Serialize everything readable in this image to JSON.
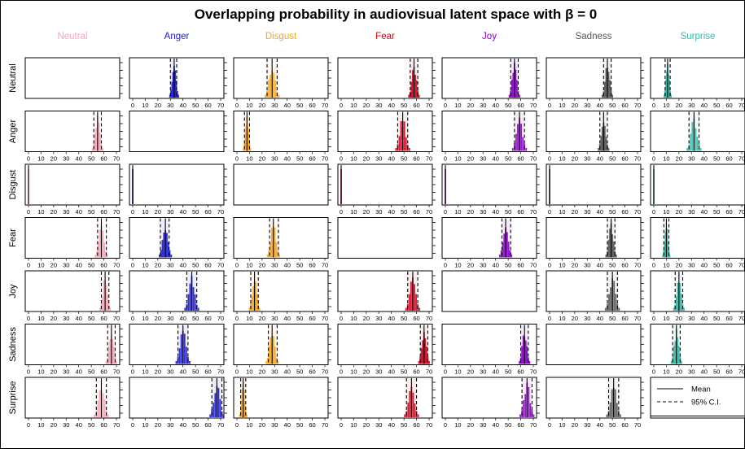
{
  "chart_data": {
    "type": "bar",
    "title": "Overlapping probability in audiovisual latent space with β = 0",
    "columns": [
      "Neutral",
      "Anger",
      "Disgust",
      "Fear",
      "Joy",
      "Sadness",
      "Surprise"
    ],
    "rows": [
      "Neutral",
      "Anger",
      "Disgust",
      "Fear",
      "Joy",
      "Sadness",
      "Surprise"
    ],
    "column_colors": {
      "Neutral": "#f4a8b8",
      "Anger": "#1a1acc",
      "Disgust": "#f5a623",
      "Fear": "#d0021b",
      "Joy": "#8b00c9",
      "Sadness": "#555555",
      "Surprise": "#3ab7a8"
    },
    "xlim": [
      0,
      70
    ],
    "x_ticks": [
      0,
      10,
      20,
      30,
      40,
      50,
      60,
      70
    ],
    "cells": [
      {
        "row": "Neutral",
        "col": "Anger",
        "mean": 33,
        "ci": [
          30,
          35
        ]
      },
      {
        "row": "Neutral",
        "col": "Disgust",
        "mean": 28,
        "ci": [
          24,
          32
        ]
      },
      {
        "row": "Neutral",
        "col": "Fear",
        "mean": 58,
        "ci": [
          55,
          61
        ]
      },
      {
        "row": "Neutral",
        "col": "Joy",
        "mean": 55,
        "ci": [
          52,
          58
        ]
      },
      {
        "row": "Neutral",
        "col": "Sadness",
        "mean": 46,
        "ci": [
          43,
          49
        ]
      },
      {
        "row": "Neutral",
        "col": "Surprise",
        "mean": 11,
        "ci": [
          9,
          13
        ]
      },
      {
        "row": "Anger",
        "col": "Neutral",
        "mean": 55,
        "ci": [
          52,
          58
        ]
      },
      {
        "row": "Anger",
        "col": "Disgust",
        "mean": 8,
        "ci": [
          6,
          10
        ]
      },
      {
        "row": "Anger",
        "col": "Fear",
        "mean": 49,
        "ci": [
          45,
          53
        ]
      },
      {
        "row": "Anger",
        "col": "Joy",
        "mean": 59,
        "ci": [
          55,
          63
        ]
      },
      {
        "row": "Anger",
        "col": "Sadness",
        "mean": 43,
        "ci": [
          40,
          46
        ]
      },
      {
        "row": "Anger",
        "col": "Surprise",
        "mean": 32,
        "ci": [
          28,
          36
        ]
      },
      {
        "row": "Disgust",
        "col": "Neutral",
        "mean": 0,
        "ci": [
          0,
          0
        ]
      },
      {
        "row": "Disgust",
        "col": "Anger",
        "mean": 0,
        "ci": [
          0,
          0
        ]
      },
      {
        "row": "Disgust",
        "col": "Fear",
        "mean": 0,
        "ci": [
          0,
          0
        ]
      },
      {
        "row": "Disgust",
        "col": "Joy",
        "mean": 0,
        "ci": [
          0,
          0
        ]
      },
      {
        "row": "Disgust",
        "col": "Sadness",
        "mean": 0,
        "ci": [
          0,
          0
        ]
      },
      {
        "row": "Disgust",
        "col": "Surprise",
        "mean": 0,
        "ci": [
          0,
          0
        ]
      },
      {
        "row": "Fear",
        "col": "Neutral",
        "mean": 58,
        "ci": [
          55,
          62
        ]
      },
      {
        "row": "Fear",
        "col": "Anger",
        "mean": 26,
        "ci": [
          22,
          29
        ]
      },
      {
        "row": "Fear",
        "col": "Disgust",
        "mean": 29,
        "ci": [
          26,
          33
        ]
      },
      {
        "row": "Fear",
        "col": "Joy",
        "mean": 48,
        "ci": [
          45,
          52
        ]
      },
      {
        "row": "Fear",
        "col": "Sadness",
        "mean": 49,
        "ci": [
          46,
          52
        ]
      },
      {
        "row": "Fear",
        "col": "Surprise",
        "mean": 10,
        "ci": [
          8,
          12
        ]
      },
      {
        "row": "Joy",
        "col": "Neutral",
        "mean": 61,
        "ci": [
          58,
          64
        ]
      },
      {
        "row": "Joy",
        "col": "Anger",
        "mean": 47,
        "ci": [
          43,
          51
        ]
      },
      {
        "row": "Joy",
        "col": "Disgust",
        "mean": 14,
        "ci": [
          11,
          17
        ]
      },
      {
        "row": "Joy",
        "col": "Fear",
        "mean": 57,
        "ci": [
          53,
          61
        ]
      },
      {
        "row": "Joy",
        "col": "Sadness",
        "mean": 50,
        "ci": [
          46,
          54
        ]
      },
      {
        "row": "Joy",
        "col": "Surprise",
        "mean": 20,
        "ci": [
          17,
          23
        ]
      },
      {
        "row": "Sadness",
        "col": "Neutral",
        "mean": 66,
        "ci": [
          63,
          69
        ]
      },
      {
        "row": "Sadness",
        "col": "Anger",
        "mean": 40,
        "ci": [
          36,
          44
        ]
      },
      {
        "row": "Sadness",
        "col": "Disgust",
        "mean": 28,
        "ci": [
          25,
          32
        ]
      },
      {
        "row": "Sadness",
        "col": "Fear",
        "mean": 66,
        "ci": [
          63,
          69
        ]
      },
      {
        "row": "Sadness",
        "col": "Joy",
        "mean": 63,
        "ci": [
          60,
          66
        ]
      },
      {
        "row": "Sadness",
        "col": "Surprise",
        "mean": 18,
        "ci": [
          15,
          21
        ]
      },
      {
        "row": "Surprise",
        "col": "Neutral",
        "mean": 58,
        "ci": [
          54,
          62
        ]
      },
      {
        "row": "Surprise",
        "col": "Anger",
        "mean": 67,
        "ci": [
          63,
          71
        ]
      },
      {
        "row": "Surprise",
        "col": "Disgust",
        "mean": 5,
        "ci": [
          3,
          7
        ]
      },
      {
        "row": "Surprise",
        "col": "Fear",
        "mean": 56,
        "ci": [
          52,
          60
        ]
      },
      {
        "row": "Surprise",
        "col": "Joy",
        "mean": 65,
        "ci": [
          61,
          69
        ]
      },
      {
        "row": "Surprise",
        "col": "Sadness",
        "mean": 51,
        "ci": [
          47,
          55
        ]
      }
    ],
    "legend": {
      "entries": [
        {
          "label": "Mean",
          "style": "solid"
        },
        {
          "label": "95% C.I.",
          "style": "dashed"
        }
      ],
      "placement": "bottom-right"
    }
  }
}
